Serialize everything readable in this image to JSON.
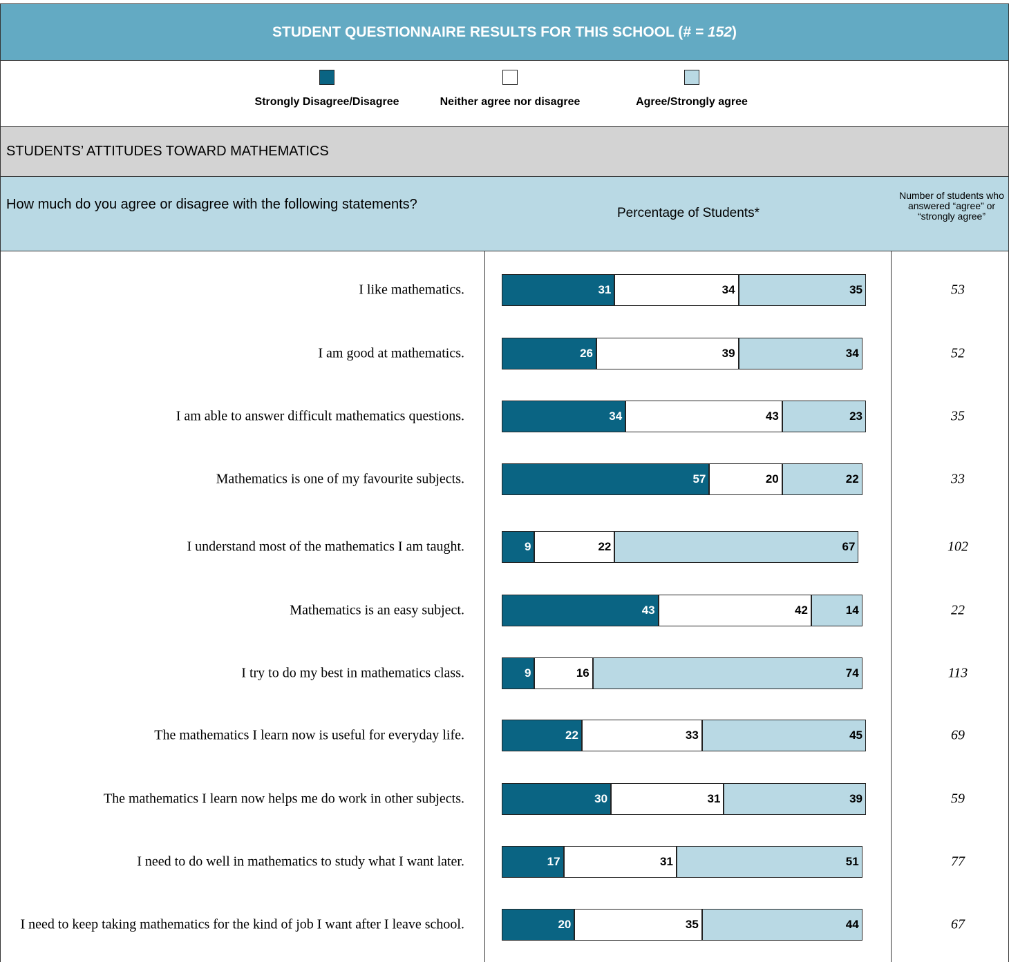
{
  "header": {
    "title_parts": [
      "STUDENT QUESTIONNAIRE RESULTS FOR THIS SCHOOL (",
      "# = 152",
      ")"
    ]
  },
  "legend": [
    {
      "label": "Strongly Disagree/Disagree",
      "color": "#0a6483"
    },
    {
      "label": "Neither agree nor disagree",
      "color": "#ffffff"
    },
    {
      "label": "Agree/Strongly agree",
      "color": "#b9d9e4"
    }
  ],
  "section": {
    "title": "STUDENTS’ ATTITUDES TOWARD MATHEMATICS"
  },
  "columns": {
    "question": "How much do you agree or disagree with the following statements?",
    "percentage": "Percentage of Students*",
    "count": "Number of students who answered “agree” or “strongly agree”"
  },
  "rows": [
    {
      "statement": "I like mathematics.",
      "values": [
        31,
        34,
        35
      ],
      "count": 53
    },
    {
      "statement": "I am good at mathematics.",
      "values": [
        26,
        39,
        34
      ],
      "count": 52
    },
    {
      "statement": "I am able to answer difficult mathematics questions.",
      "values": [
        34,
        43,
        23
      ],
      "count": 35
    },
    {
      "statement": "Mathematics is one of my favourite subjects.",
      "values": [
        57,
        20,
        22
      ],
      "count": 33
    },
    {
      "statement": "I understand most of the mathematics I am taught.",
      "values": [
        9,
        22,
        67
      ],
      "count": 102
    },
    {
      "statement": "Mathematics is an easy subject.",
      "values": [
        43,
        42,
        14
      ],
      "count": 22
    },
    {
      "statement": "I try to do my best in mathematics class.",
      "values": [
        9,
        16,
        74
      ],
      "count": 113
    },
    {
      "statement": "The mathematics I learn now is useful for everyday life.",
      "values": [
        22,
        33,
        45
      ],
      "count": 69
    },
    {
      "statement": "The mathematics I learn now helps me do work in other subjects.",
      "values": [
        30,
        31,
        39
      ],
      "count": 59
    },
    {
      "statement": "I need to do well in mathematics to study what I want later.",
      "values": [
        17,
        31,
        51
      ],
      "count": 77
    },
    {
      "statement": "I need to keep taking mathematics for the kind of job I want after I leave school.",
      "values": [
        20,
        35,
        44
      ],
      "count": 67
    }
  ]
}
